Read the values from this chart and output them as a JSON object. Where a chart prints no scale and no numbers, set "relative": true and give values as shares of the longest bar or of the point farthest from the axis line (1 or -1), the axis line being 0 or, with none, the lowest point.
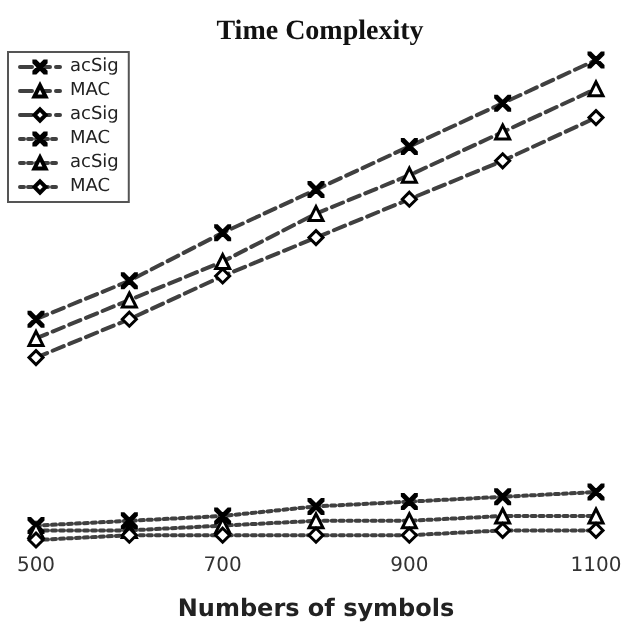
{
  "chart_data": {
    "type": "line",
    "title": "Time Complexity",
    "xlabel": "Numbers of symbols",
    "relative": true,
    "x": [
      500,
      600,
      700,
      800,
      900,
      1000,
      1100
    ],
    "xlim": [
      500,
      1100
    ],
    "xticks": [
      500,
      700,
      900,
      1100
    ],
    "legend": "top left",
    "grid": false,
    "series": [
      {
        "name": "acSig",
        "color": "#404040",
        "marker": "cross",
        "line_style": "dashed",
        "values": [
          0.46,
          0.54,
          0.64,
          0.73,
          0.82,
          0.91,
          1
        ]
      },
      {
        "name": "MAC",
        "color": "#404040",
        "marker": "triangle",
        "line_style": "dashed",
        "values": [
          0.42,
          0.5,
          0.58,
          0.68,
          0.76,
          0.85,
          0.94
        ]
      },
      {
        "name": "acSig",
        "color": "#404040",
        "marker": "diamond",
        "line_style": "dashed",
        "values": [
          0.38,
          0.46,
          0.55,
          0.63,
          0.71,
          0.79,
          0.88
        ]
      },
      {
        "name": "MAC",
        "color": "#404040",
        "marker": "cross",
        "line_style": "dotted",
        "values": [
          0.03,
          0.04,
          0.05,
          0.07,
          0.08,
          0.09,
          0.1
        ]
      },
      {
        "name": "acSig",
        "color": "#404040",
        "marker": "triangle",
        "line_style": "dotted",
        "values": [
          0.02,
          0.02,
          0.03,
          0.04,
          0.04,
          0.05,
          0.05
        ]
      },
      {
        "name": "MAC",
        "color": "#404040",
        "marker": "diamond",
        "line_style": "dotted",
        "values": [
          0,
          0.01,
          0.01,
          0.01,
          0.01,
          0.02,
          0.02
        ]
      }
    ]
  }
}
